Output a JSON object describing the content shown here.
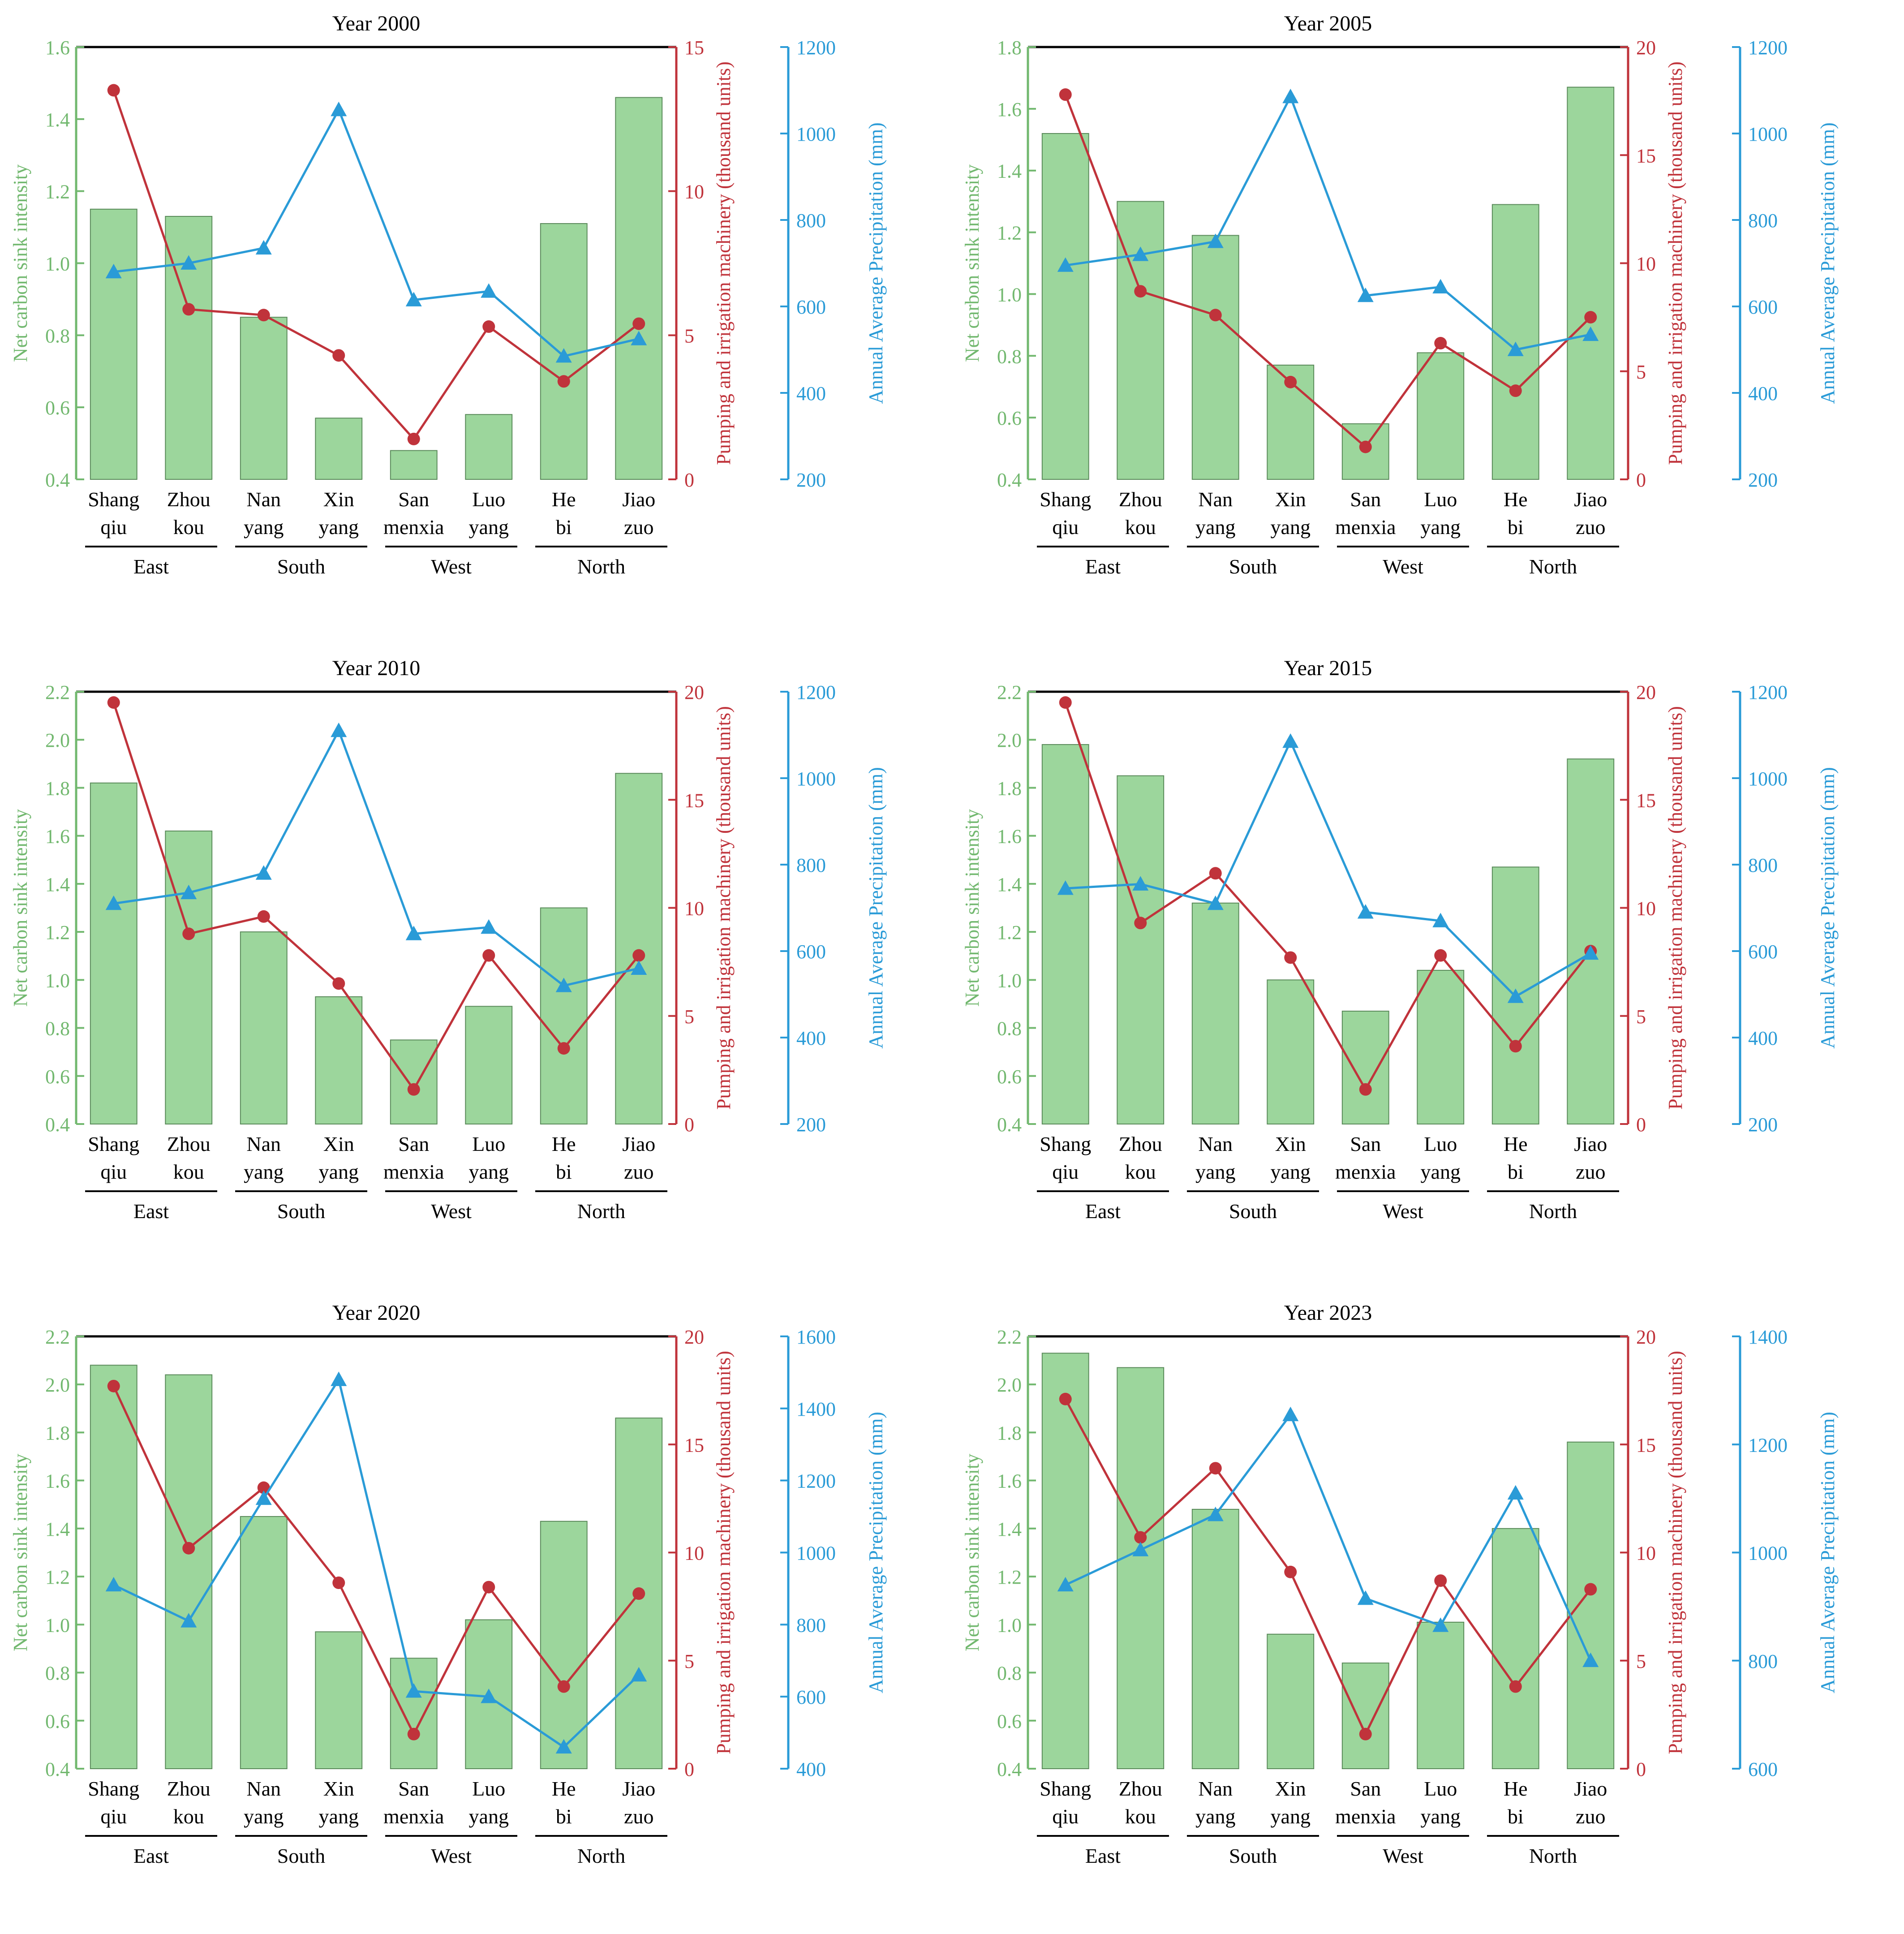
{
  "colors": {
    "bars": "#9cd69c",
    "bar_edge": "#5a8a5a",
    "carbon_axis": "#72b86f",
    "pumping": "#c0333b",
    "precip": "#2a9bd7",
    "frame": "#000000"
  },
  "chart_data": [
    {
      "type": "bar",
      "title": "Year 2000",
      "categories": [
        "Shang\nqiu",
        "Zhou\nkou",
        "Nan\nyang",
        "Xin\nyang",
        "San\nmenxia",
        "Luo\nyang",
        "He\nbi",
        "Jiao\nzuo"
      ],
      "groups": [
        {
          "name": "East",
          "span": [
            0,
            1
          ]
        },
        {
          "name": "South",
          "span": [
            2,
            3
          ]
        },
        {
          "name": "West",
          "span": [
            4,
            5
          ]
        },
        {
          "name": "North",
          "span": [
            6,
            7
          ]
        }
      ],
      "ylabel_left": "Net carbon sink intensity",
      "ylabel_mid": "Pumping and irrigation machinery (thousand units)",
      "ylabel_right": "Annual Average Precipitation (mm)",
      "ylim_left": [
        0.4,
        1.6
      ],
      "yticks_left": [
        "0.4",
        "0.6",
        "0.8",
        "1.0",
        "1.2",
        "1.4",
        "1.6"
      ],
      "ylim_mid": [
        0,
        15
      ],
      "yticks_mid": [
        "0",
        "5",
        "10",
        "15"
      ],
      "ylim_right": [
        200,
        1200
      ],
      "yticks_right": [
        "200",
        "400",
        "600",
        "800",
        "1000",
        "1200"
      ],
      "series": [
        {
          "kind": "bar",
          "axis": "left",
          "values": [
            1.15,
            1.13,
            0.85,
            0.57,
            0.48,
            0.58,
            1.11,
            1.46
          ]
        },
        {
          "kind": "line",
          "axis": "mid",
          "marker": "circle",
          "values": [
            13.5,
            5.9,
            5.7,
            4.3,
            1.4,
            5.3,
            3.4,
            5.4
          ]
        },
        {
          "kind": "line",
          "axis": "right",
          "marker": "triangle",
          "values": [
            680,
            700,
            735,
            1055,
            615,
            635,
            485,
            525
          ]
        }
      ]
    },
    {
      "type": "bar",
      "title": "Year 2005",
      "categories": [
        "Shang\nqiu",
        "Zhou\nkou",
        "Nan\nyang",
        "Xin\nyang",
        "San\nmenxia",
        "Luo\nyang",
        "He\nbi",
        "Jiao\nzuo"
      ],
      "groups": [
        {
          "name": "East",
          "span": [
            0,
            1
          ]
        },
        {
          "name": "South",
          "span": [
            2,
            3
          ]
        },
        {
          "name": "West",
          "span": [
            4,
            5
          ]
        },
        {
          "name": "North",
          "span": [
            6,
            7
          ]
        }
      ],
      "ylabel_left": "Net carbon sink intensity",
      "ylabel_mid": "Pumping and irrigation machinery (thousand units)",
      "ylabel_right": "Annual Average Precipitation (mm)",
      "ylim_left": [
        0.4,
        1.8
      ],
      "yticks_left": [
        "0.4",
        "0.6",
        "0.8",
        "1.0",
        "1.2",
        "1.4",
        "1.6",
        "1.8"
      ],
      "ylim_mid": [
        0,
        20
      ],
      "yticks_mid": [
        "0",
        "5",
        "10",
        "15",
        "20"
      ],
      "ylim_right": [
        200,
        1200
      ],
      "yticks_right": [
        "200",
        "400",
        "600",
        "800",
        "1000",
        "1200"
      ],
      "series": [
        {
          "kind": "bar",
          "axis": "left",
          "values": [
            1.52,
            1.3,
            1.19,
            0.77,
            0.58,
            0.81,
            1.29,
            1.67
          ]
        },
        {
          "kind": "line",
          "axis": "mid",
          "marker": "circle",
          "values": [
            17.8,
            8.7,
            7.6,
            4.5,
            1.5,
            6.3,
            4.1,
            7.5
          ]
        },
        {
          "kind": "line",
          "axis": "right",
          "marker": "triangle",
          "values": [
            695,
            720,
            750,
            1085,
            625,
            645,
            500,
            535
          ]
        }
      ]
    },
    {
      "type": "bar",
      "title": "Year 2010",
      "categories": [
        "Shang\nqiu",
        "Zhou\nkou",
        "Nan\nyang",
        "Xin\nyang",
        "San\nmenxia",
        "Luo\nyang",
        "He\nbi",
        "Jiao\nzuo"
      ],
      "groups": [
        {
          "name": "East",
          "span": [
            0,
            1
          ]
        },
        {
          "name": "South",
          "span": [
            2,
            3
          ]
        },
        {
          "name": "West",
          "span": [
            4,
            5
          ]
        },
        {
          "name": "North",
          "span": [
            6,
            7
          ]
        }
      ],
      "ylabel_left": "Net carbon sink intensity",
      "ylabel_mid": "Pumping and irrigation machinery (thousand units)",
      "ylabel_right": "Annual Average Precipitation (mm)",
      "ylim_left": [
        0.4,
        2.2
      ],
      "yticks_left": [
        "0.4",
        "0.6",
        "0.8",
        "1.0",
        "1.2",
        "1.4",
        "1.6",
        "1.8",
        "2.0",
        "2.2"
      ],
      "ylim_mid": [
        0,
        20
      ],
      "yticks_mid": [
        "0",
        "5",
        "10",
        "15",
        "20"
      ],
      "ylim_right": [
        200,
        1200
      ],
      "yticks_right": [
        "200",
        "400",
        "600",
        "800",
        "1000",
        "1200"
      ],
      "series": [
        {
          "kind": "bar",
          "axis": "left",
          "values": [
            1.82,
            1.62,
            1.2,
            0.93,
            0.75,
            0.89,
            1.3,
            1.86
          ]
        },
        {
          "kind": "line",
          "axis": "mid",
          "marker": "circle",
          "values": [
            19.5,
            8.8,
            9.6,
            6.5,
            1.6,
            7.8,
            3.5,
            7.8
          ]
        },
        {
          "kind": "line",
          "axis": "right",
          "marker": "triangle",
          "values": [
            710,
            735,
            780,
            1110,
            640,
            655,
            520,
            560
          ]
        }
      ]
    },
    {
      "type": "bar",
      "title": "Year 2015",
      "categories": [
        "Shang\nqiu",
        "Zhou\nkou",
        "Nan\nyang",
        "Xin\nyang",
        "San\nmenxia",
        "Luo\nyang",
        "He\nbi",
        "Jiao\nzuo"
      ],
      "groups": [
        {
          "name": "East",
          "span": [
            0,
            1
          ]
        },
        {
          "name": "South",
          "span": [
            2,
            3
          ]
        },
        {
          "name": "West",
          "span": [
            4,
            5
          ]
        },
        {
          "name": "North",
          "span": [
            6,
            7
          ]
        }
      ],
      "ylabel_left": "Net carbon sink intensity",
      "ylabel_mid": "Pumping and irrigation machinery (thousand units)",
      "ylabel_right": "Annual Average Precipitation (mm)",
      "ylim_left": [
        0.4,
        2.2
      ],
      "yticks_left": [
        "0.4",
        "0.6",
        "0.8",
        "1.0",
        "1.2",
        "1.4",
        "1.6",
        "1.8",
        "2.0",
        "2.2"
      ],
      "ylim_mid": [
        0,
        20
      ],
      "yticks_mid": [
        "0",
        "5",
        "10",
        "15",
        "20"
      ],
      "ylim_right": [
        200,
        1200
      ],
      "yticks_right": [
        "200",
        "400",
        "600",
        "800",
        "1000",
        "1200"
      ],
      "series": [
        {
          "kind": "bar",
          "axis": "left",
          "values": [
            1.98,
            1.85,
            1.32,
            1.0,
            0.87,
            1.04,
            1.47,
            1.92
          ]
        },
        {
          "kind": "line",
          "axis": "mid",
          "marker": "circle",
          "values": [
            19.5,
            9.3,
            11.6,
            7.7,
            1.6,
            7.8,
            3.6,
            8.0
          ]
        },
        {
          "kind": "line",
          "axis": "right",
          "marker": "triangle",
          "values": [
            745,
            755,
            710,
            1085,
            690,
            670,
            495,
            595
          ]
        }
      ]
    },
    {
      "type": "bar",
      "title": "Year 2020",
      "categories": [
        "Shang\nqiu",
        "Zhou\nkou",
        "Nan\nyang",
        "Xin\nyang",
        "San\nmenxia",
        "Luo\nyang",
        "He\nbi",
        "Jiao\nzuo"
      ],
      "groups": [
        {
          "name": "East",
          "span": [
            0,
            1
          ]
        },
        {
          "name": "South",
          "span": [
            2,
            3
          ]
        },
        {
          "name": "West",
          "span": [
            4,
            5
          ]
        },
        {
          "name": "North",
          "span": [
            6,
            7
          ]
        }
      ],
      "ylabel_left": "Net carbon sink intensity",
      "ylabel_mid": "Pumping and irrigation machinery (thousand units)",
      "ylabel_right": "Annual Average Precipitation (mm)",
      "ylim_left": [
        0.4,
        2.2
      ],
      "yticks_left": [
        "0.4",
        "0.6",
        "0.8",
        "1.0",
        "1.2",
        "1.4",
        "1.6",
        "1.8",
        "2.0",
        "2.2"
      ],
      "ylim_mid": [
        0,
        20
      ],
      "yticks_mid": [
        "0",
        "5",
        "10",
        "15",
        "20"
      ],
      "ylim_right": [
        400,
        1600
      ],
      "yticks_right": [
        "400",
        "600",
        "800",
        "1000",
        "1200",
        "1400",
        "1600"
      ],
      "series": [
        {
          "kind": "bar",
          "axis": "left",
          "values": [
            2.08,
            2.04,
            1.45,
            0.97,
            0.86,
            1.02,
            1.43,
            1.86
          ]
        },
        {
          "kind": "line",
          "axis": "mid",
          "marker": "circle",
          "values": [
            17.7,
            10.2,
            13.0,
            8.6,
            1.6,
            8.4,
            3.8,
            8.1
          ]
        },
        {
          "kind": "line",
          "axis": "right",
          "marker": "triangle",
          "values": [
            910,
            810,
            1150,
            1480,
            615,
            600,
            460,
            660
          ]
        }
      ]
    },
    {
      "type": "bar",
      "title": "Year 2023",
      "categories": [
        "Shang\nqiu",
        "Zhou\nkou",
        "Nan\nyang",
        "Xin\nyang",
        "San\nmenxia",
        "Luo\nyang",
        "He\nbi",
        "Jiao\nzuo"
      ],
      "groups": [
        {
          "name": "East",
          "span": [
            0,
            1
          ]
        },
        {
          "name": "South",
          "span": [
            2,
            3
          ]
        },
        {
          "name": "West",
          "span": [
            4,
            5
          ]
        },
        {
          "name": "North",
          "span": [
            6,
            7
          ]
        }
      ],
      "ylabel_left": "Net carbon sink intensity",
      "ylabel_mid": "Pumping and irrigation machinery (thousand units)",
      "ylabel_right": "Annual Average Precipitation (mm)",
      "ylim_left": [
        0.4,
        2.2
      ],
      "yticks_left": [
        "0.4",
        "0.6",
        "0.8",
        "1.0",
        "1.2",
        "1.4",
        "1.6",
        "1.8",
        "2.0",
        "2.2"
      ],
      "ylim_mid": [
        0,
        20
      ],
      "yticks_mid": [
        "0",
        "5",
        "10",
        "15",
        "20"
      ],
      "ylim_right": [
        600,
        1400
      ],
      "yticks_right": [
        "600",
        "800",
        "1000",
        "1200",
        "1400"
      ],
      "series": [
        {
          "kind": "bar",
          "axis": "left",
          "values": [
            2.13,
            2.07,
            1.48,
            0.96,
            0.84,
            1.01,
            1.4,
            1.76
          ]
        },
        {
          "kind": "line",
          "axis": "mid",
          "marker": "circle",
          "values": [
            17.1,
            10.7,
            13.9,
            9.1,
            1.6,
            8.7,
            3.8,
            8.3
          ]
        },
        {
          "kind": "line",
          "axis": "right",
          "marker": "triangle",
          "values": [
            940,
            1005,
            1070,
            1255,
            915,
            865,
            1110,
            800
          ]
        }
      ]
    }
  ]
}
